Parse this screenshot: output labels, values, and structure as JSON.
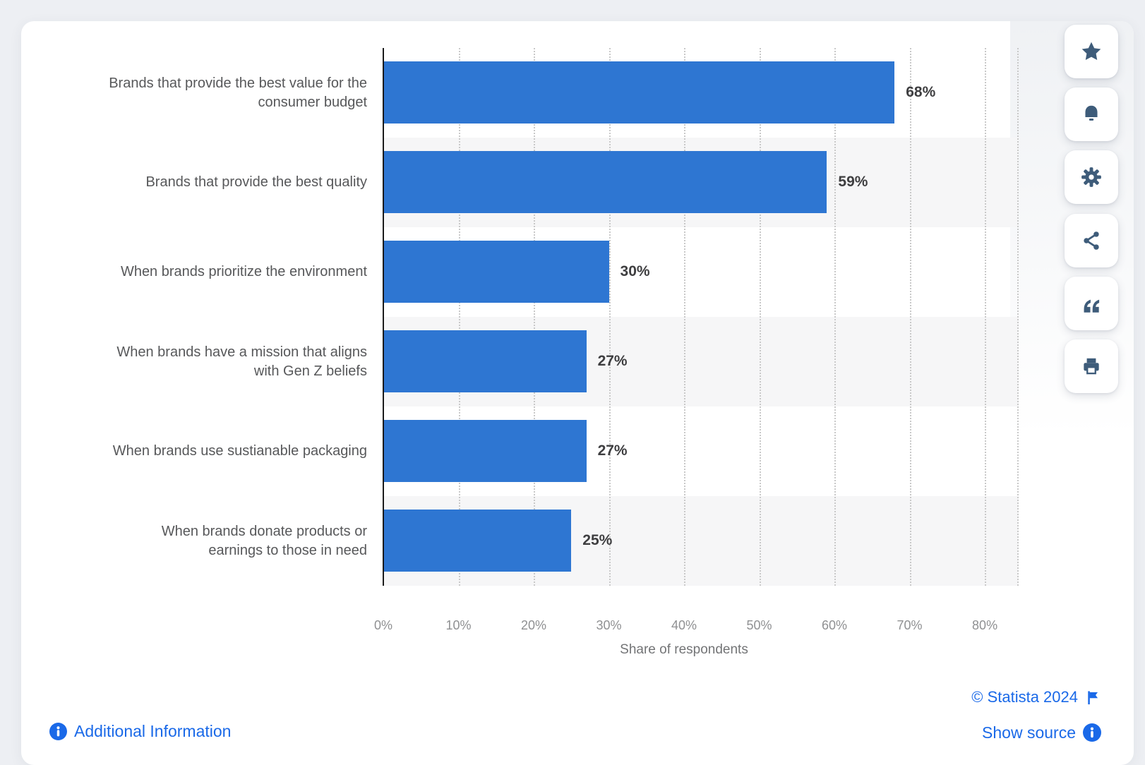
{
  "chart_data": {
    "type": "bar",
    "orientation": "horizontal",
    "categories": [
      "Brands that provide the best value for the\nconsumer budget",
      "Brands that provide the best quality",
      "When brands prioritize the environment",
      "When brands have a mission that aligns\nwith Gen Z beliefs",
      "When brands use sustianable packaging",
      "When brands donate products or\nearnings to those in need"
    ],
    "values": [
      68,
      59,
      30,
      27,
      27,
      25
    ],
    "value_labels": [
      "68%",
      "59%",
      "30%",
      "27%",
      "27%",
      "25%"
    ],
    "xlabel": "Share of respondents",
    "xlim": [
      0,
      84.5
    ],
    "ticks": [
      0,
      10,
      20,
      30,
      40,
      50,
      60,
      70,
      80
    ],
    "tick_labels": [
      "0%",
      "10%",
      "20%",
      "30%",
      "40%",
      "50%",
      "60%",
      "70%",
      "80%"
    ],
    "bar_color": "#2E76D2",
    "band_color": "#F6F6F7",
    "grid": "dotted-vertical",
    "legend": "none",
    "title": ""
  },
  "toolbar": {
    "buttons": [
      {
        "name": "favorite",
        "icon": "star-icon"
      },
      {
        "name": "alerts",
        "icon": "bell-icon"
      },
      {
        "name": "settings",
        "icon": "gear-icon"
      },
      {
        "name": "share",
        "icon": "share-icon"
      },
      {
        "name": "cite",
        "icon": "quote-icon"
      },
      {
        "name": "print",
        "icon": "printer-icon"
      }
    ]
  },
  "footer": {
    "additional_information": "Additional Information",
    "copyright": "© Statista 2024",
    "show_source": "Show source"
  },
  "colors": {
    "link": "#1A69E8",
    "toolbar_icon": "#3E5C7A",
    "axis": "#1B1B1B",
    "gridline": "#C9C9C9",
    "category_text": "#57585A",
    "value_text": "#3E3E40",
    "tick_text": "#8F9092"
  }
}
